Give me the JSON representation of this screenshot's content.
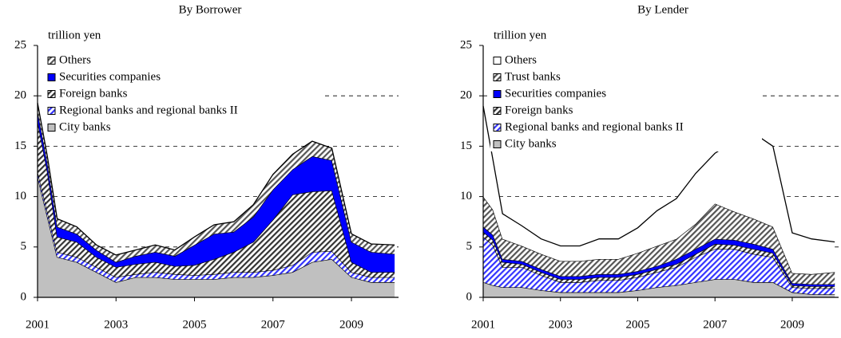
{
  "chart_data": [
    {
      "type": "area",
      "title": "By Borrower",
      "ylabel": "trillion yen",
      "x": [
        2001,
        2001.25,
        2001.5,
        2002,
        2002.5,
        2003,
        2003.5,
        2004,
        2004.5,
        2005,
        2005.5,
        2006,
        2006.5,
        2007,
        2007.5,
        2008,
        2008.5,
        2009,
        2009.5,
        2010.1
      ],
      "xlim": [
        2001,
        2010.2
      ],
      "xticks": [
        2001,
        2003,
        2005,
        2007,
        2009
      ],
      "ylim": [
        0,
        25
      ],
      "yticks": [
        0,
        5,
        10,
        15,
        20,
        25
      ],
      "grid": true,
      "series": [
        {
          "name": "City banks",
          "color": "#c0c0c0",
          "hatch": false,
          "values": [
            12,
            8,
            4,
            3.5,
            2.5,
            1.5,
            2,
            2,
            1.8,
            1.8,
            1.8,
            2,
            2,
            2.2,
            2.5,
            3.5,
            3.8,
            2,
            1.5,
            1.5
          ]
        },
        {
          "name": "Regional banks and regional banks II",
          "color": "#3333ff",
          "hatch": true,
          "values": [
            0.5,
            0.5,
            0.5,
            0.5,
            0.5,
            0.5,
            0.3,
            0.5,
            0.5,
            0.4,
            0.5,
            0.5,
            0.5,
            0.5,
            0.7,
            1,
            0.8,
            0.5,
            0.5,
            0.5
          ]
        },
        {
          "name": "Foreign banks",
          "color": "#333333",
          "hatch": true,
          "values": [
            5,
            4,
            1.5,
            1.5,
            1,
            1,
            1,
            1,
            0.8,
            1,
            1.5,
            2,
            3,
            5,
            7,
            6,
            6,
            1,
            0.5,
            0.5
          ]
        },
        {
          "name": "Securities companies",
          "color": "#0000ff",
          "hatch": false,
          "values": [
            1,
            0.8,
            1,
            0.8,
            0.7,
            0.5,
            0.8,
            1,
            1,
            2,
            2.5,
            2,
            2.5,
            3,
            2.5,
            3.5,
            3,
            2,
            2,
            1.8
          ]
        },
        {
          "name": "Others",
          "color": "#555555",
          "hatch": true,
          "values": [
            0.8,
            0.7,
            0.8,
            0.7,
            0.5,
            0.7,
            0.6,
            0.7,
            0.6,
            0.8,
            0.9,
            1,
            1.2,
            1.5,
            1.5,
            1.5,
            1.2,
            0.8,
            0.8,
            0.9
          ]
        }
      ]
    },
    {
      "type": "area",
      "title": "By Lender",
      "ylabel": "trillion yen",
      "x": [
        2001,
        2001.25,
        2001.5,
        2002,
        2002.5,
        2003,
        2003.5,
        2004,
        2004.5,
        2005,
        2005.5,
        2006,
        2006.5,
        2007,
        2007.5,
        2008,
        2008.5,
        2009,
        2009.5,
        2010.1
      ],
      "xlim": [
        2001,
        2010.2
      ],
      "xticks": [
        2001,
        2003,
        2005,
        2007,
        2009
      ],
      "ylim": [
        0,
        25
      ],
      "yticks": [
        0,
        5,
        10,
        15,
        20,
        25
      ],
      "grid": true,
      "series": [
        {
          "name": "City banks",
          "color": "#c0c0c0",
          "hatch": false,
          "values": [
            1.5,
            1.2,
            1,
            1,
            0.7,
            0.5,
            0.5,
            0.5,
            0.5,
            0.7,
            1,
            1.2,
            1.5,
            1.8,
            1.8,
            1.5,
            1.5,
            0.5,
            0.3,
            0.3
          ]
        },
        {
          "name": "Regional banks and regional banks II",
          "color": "#3333ff",
          "hatch": true,
          "values": [
            4.5,
            4,
            2,
            2,
            1.5,
            1,
            1,
            1.2,
            1.2,
            1.3,
            1.5,
            1.8,
            2.5,
            3,
            3,
            2.8,
            2.5,
            0.5,
            0.6,
            0.6
          ]
        },
        {
          "name": "Foreign banks",
          "color": "#333333",
          "hatch": true,
          "values": [
            0.5,
            0.5,
            0.5,
            0.3,
            0.3,
            0.3,
            0.3,
            0.3,
            0.3,
            0.3,
            0.3,
            0.3,
            0.3,
            0.5,
            0.4,
            0.5,
            0.4,
            0.2,
            0.2,
            0.2
          ]
        },
        {
          "name": "Securities companies",
          "color": "#0000ff",
          "hatch": false,
          "values": [
            0.5,
            0.5,
            0.3,
            0.3,
            0.3,
            0.3,
            0.3,
            0.3,
            0.3,
            0.3,
            0.3,
            0.5,
            0.5,
            0.5,
            0.5,
            0.5,
            0.4,
            0.2,
            0.2,
            0.2
          ]
        },
        {
          "name": "Trust banks",
          "color": "#555555",
          "hatch": true,
          "values": [
            3,
            2.5,
            2,
            1.5,
            1.5,
            1.5,
            1.5,
            1.5,
            1.5,
            1.8,
            2,
            2,
            2.5,
            3.5,
            2.8,
            2.5,
            2.2,
            1,
            1,
            1.2
          ]
        },
        {
          "name": "Others",
          "color": "#ffffff",
          "hatch": false,
          "values": [
            9,
            5,
            2.5,
            2,
            1.5,
            1.5,
            1.5,
            2,
            2,
            2.5,
            3.5,
            4,
            5,
            5,
            7,
            8.5,
            8,
            4,
            3.5,
            3
          ]
        }
      ]
    }
  ]
}
